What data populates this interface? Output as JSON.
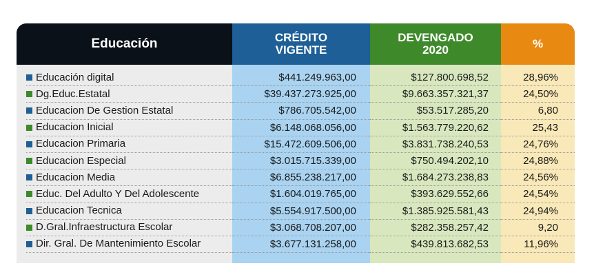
{
  "header": {
    "name": "Educación",
    "credito": "CRÉDITO\nVIGENTE",
    "devengado": "DEVENGADO\n2020",
    "pct": "%"
  },
  "colors": {
    "blue_bullet": "#1d5f96",
    "green_bullet": "#3e8a2a"
  },
  "rows": [
    {
      "name": "Educación digital",
      "credito": "$441.249.963,00",
      "devengado": "$127.800.698,52",
      "pct": "28,96%",
      "bullet": "blue"
    },
    {
      "name": "Dg.Educ.Estatal",
      "credito": "$39.437.273.925,00",
      "devengado": "$9.663.357.321,37",
      "pct": "24,50%",
      "bullet": "green"
    },
    {
      "name": "Educacion De Gestion Estatal",
      "credito": "$786.705.542,00",
      "devengado": "$53.517.285,20",
      "pct": "6,80",
      "bullet": "blue"
    },
    {
      "name": "Educacion Inicial",
      "credito": "$6.148.068.056,00",
      "devengado": "$1.563.779.220,62",
      "pct": "25,43",
      "bullet": "green"
    },
    {
      "name": "Educacion Primaria",
      "credito": "$15.472.609.506,00",
      "devengado": "$3.831.738.240,53",
      "pct": "24,76%",
      "bullet": "blue"
    },
    {
      "name": "Educacion Especial",
      "credito": "$3.015.715.339,00",
      "devengado": "$750.494.202,10",
      "pct": "24,88%",
      "bullet": "green"
    },
    {
      "name": "Educacion Media",
      "credito": "$6.855.238.217,00",
      "devengado": "$1.684.273.238,83",
      "pct": "24,56%",
      "bullet": "blue"
    },
    {
      "name": "Educ. Del Adulto Y Del Adolescente",
      "credito": "$1.604.019.765,00",
      "devengado": "$393.629.552,66",
      "pct": "24,54%",
      "bullet": "green"
    },
    {
      "name": "Educacion Tecnica",
      "credito": "$5.554.917.500,00",
      "devengado": "$1.385.925.581,43",
      "pct": "24,94%",
      "bullet": "blue"
    },
    {
      "name": "D.Gral.Infraestructura Escolar",
      "credito": "$3.068.708.207,00",
      "devengado": "$282.358.257,42",
      "pct": "9,20",
      "bullet": "green"
    },
    {
      "name": "Dir. Gral. De Mantenimiento Escolar",
      "credito": "$3.677.131.258,00",
      "devengado": "$439.813.682,53",
      "pct": "11,96%",
      "bullet": "blue"
    }
  ]
}
